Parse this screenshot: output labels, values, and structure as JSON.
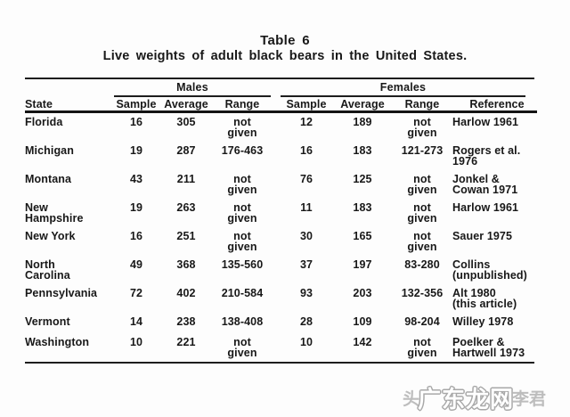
{
  "title": {
    "line1": "Table 6",
    "line2": "Live weights of adult black bears in the United States."
  },
  "table": {
    "group_headers": {
      "males": "Males",
      "females": "Females"
    },
    "columns": {
      "state": "State",
      "sample": "Sample",
      "average": "Average",
      "range": "Range",
      "reference": "Reference"
    },
    "rows": [
      {
        "state": "Florida",
        "m_sample": "16",
        "m_avg": "305",
        "m_range": "not\ngiven",
        "f_sample": "12",
        "f_avg": "189",
        "f_range": "not\ngiven",
        "reference": "Harlow 1961"
      },
      {
        "state": "Michigan",
        "m_sample": "19",
        "m_avg": "287",
        "m_range": "176-463",
        "f_sample": "16",
        "f_avg": "183",
        "f_range": "121-273",
        "reference": "Rogers et al.\n1976"
      },
      {
        "state": "Montana",
        "m_sample": "43",
        "m_avg": "211",
        "m_range": "not\ngiven",
        "f_sample": "76",
        "f_avg": "125",
        "f_range": "not\ngiven",
        "reference": "Jonkel &\nCowan 1971"
      },
      {
        "state": "New\nHampshire",
        "m_sample": "19",
        "m_avg": "263",
        "m_range": "not\ngiven",
        "f_sample": "11",
        "f_avg": "183",
        "f_range": "not\ngiven",
        "reference": "Harlow 1961"
      },
      {
        "state": "New York",
        "m_sample": "16",
        "m_avg": "251",
        "m_range": "not\ngiven",
        "f_sample": "30",
        "f_avg": "165",
        "f_range": "not\ngiven",
        "reference": "Sauer 1975"
      },
      {
        "state": "North\nCarolina",
        "m_sample": "49",
        "m_avg": "368",
        "m_range": "135-560",
        "f_sample": "37",
        "f_avg": "197",
        "f_range": "83-280",
        "reference": "Collins\n(unpublished)"
      },
      {
        "state": "Pennsylvania",
        "m_sample": "72",
        "m_avg": "402",
        "m_range": "210-584",
        "f_sample": "93",
        "f_avg": "203",
        "f_range": "132-356",
        "reference": "Alt 1980\n(this article)"
      },
      {
        "state": "Vermont",
        "m_sample": "14",
        "m_avg": "238",
        "m_range": "138-408",
        "f_sample": "28",
        "f_avg": "109",
        "f_range": "98-204",
        "reference": "Willey 1978"
      },
      {
        "state": "Washington",
        "m_sample": "10",
        "m_avg": "221",
        "m_range": "not\ngiven",
        "f_sample": "10",
        "f_avg": "142",
        "f_range": "not\ngiven",
        "reference": "Poelker &\nHartwell 1973"
      }
    ]
  },
  "watermark": {
    "left_text": "头",
    "outline_text": "广东龙网",
    "right_text": "李君",
    "outline_color": "#ffffff",
    "outline_edge_color": "#a8a8a8",
    "gray_color": "#bdbdbd"
  }
}
